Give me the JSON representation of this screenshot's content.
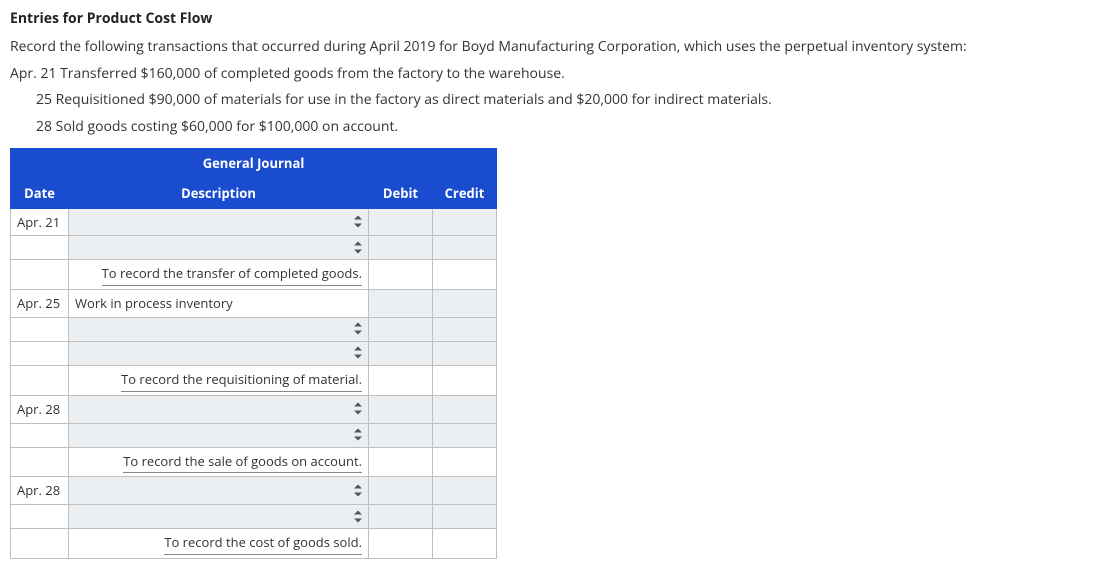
{
  "heading": "Entries for Product Cost Flow",
  "instruction": "Record the following transactions that occurred during April 2019 for Boyd Manufacturing Corporation, which uses the perpetual inventory system:",
  "lines": [
    "Apr. 21 Transferred $160,000 of completed goods from the factory to the warehouse.",
    "25 Requisitioned $90,000 of materials for use in the factory as direct materials and $20,000 for indirect materials.",
    "28 Sold goods costing $60,000 for $100,000 on account."
  ],
  "journal": {
    "title": "General Journal",
    "columns": {
      "date": "Date",
      "description": "Description",
      "debit": "Debit",
      "credit": "Credit"
    },
    "colors": {
      "header_bg": "#1a4ccf",
      "header_text": "#ffffff",
      "cell_border": "#bfbfbf",
      "input_bg": "#eceff1"
    },
    "rows": [
      {
        "date": "Apr. 21",
        "type": "select",
        "desc": ""
      },
      {
        "date": "",
        "type": "select",
        "desc": ""
      },
      {
        "date": "",
        "type": "narration",
        "desc": "To record the transfer of completed goods."
      },
      {
        "date": "Apr. 25",
        "type": "text",
        "desc": "Work in process inventory"
      },
      {
        "date": "",
        "type": "select",
        "desc": ""
      },
      {
        "date": "",
        "type": "select",
        "desc": ""
      },
      {
        "date": "",
        "type": "narration",
        "desc": "To record the requisitioning of material."
      },
      {
        "date": "Apr. 28",
        "type": "select",
        "desc": ""
      },
      {
        "date": "",
        "type": "select",
        "desc": ""
      },
      {
        "date": "",
        "type": "narration",
        "desc": "To record the sale of goods on account."
      },
      {
        "date": "Apr. 28",
        "type": "select",
        "desc": ""
      },
      {
        "date": "",
        "type": "select",
        "desc": ""
      },
      {
        "date": "",
        "type": "narration",
        "desc": "To record the cost of goods sold."
      }
    ]
  }
}
